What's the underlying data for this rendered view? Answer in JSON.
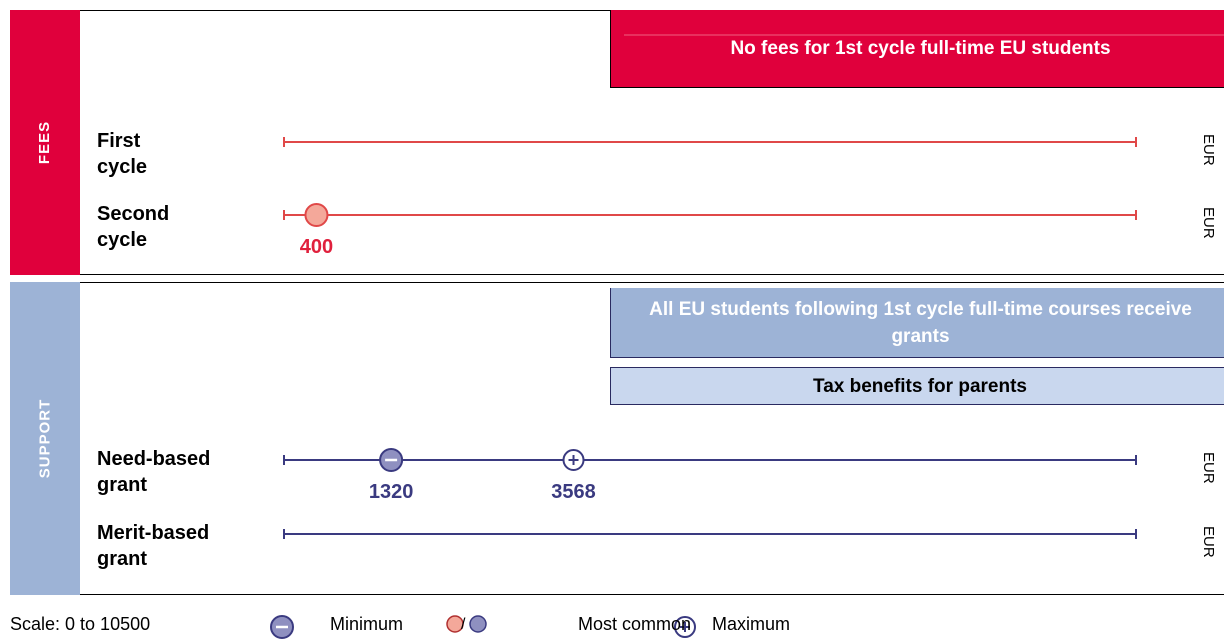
{
  "xlim": [
    0,
    10500
  ],
  "fees": {
    "label": "FEES",
    "banners": [
      "No fees for 1st cycle full-time EU students"
    ],
    "rows": [
      {
        "label": "First cycle",
        "unit": "EUR"
      },
      {
        "label": "Second cycle",
        "unit": "EUR",
        "most_common": 400
      }
    ]
  },
  "support": {
    "label": "SUPPORT",
    "banners": [
      "All EU students following 1st cycle full-time courses receive grants",
      "Tax benefits for parents"
    ],
    "rows": [
      {
        "label": "Need-based grant",
        "unit": "EUR",
        "minimum": 1320,
        "maximum": 3568
      },
      {
        "label": "Merit-based grant",
        "unit": "EUR"
      }
    ]
  },
  "legend": {
    "scale": "Scale: 0 to 10500",
    "minimum": "Minimum",
    "separator": "/",
    "most_common": "Most common",
    "maximum": "Maximum"
  }
}
